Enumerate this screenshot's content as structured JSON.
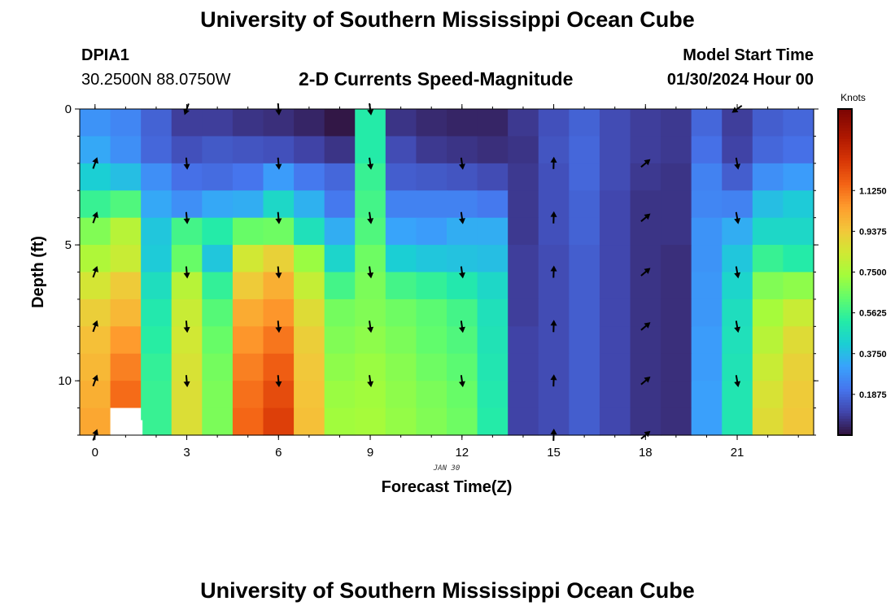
{
  "header": {
    "title": "University of Southern Mississippi Ocean Cube",
    "station": "DPIA1",
    "coords": "30.2500N  88.0750W",
    "subtitle": "2-D Currents Speed-Magnitude",
    "model_label": "Model Start Time",
    "model_time": "01/30/2024 Hour 00"
  },
  "footer": {
    "title": "University of Southern Mississippi Ocean Cube"
  },
  "chart_data": {
    "type": "heatmap",
    "title": "2-D Currents Speed-Magnitude",
    "xlabel": "Forecast Time(Z)",
    "ylabel": "Depth (ft)",
    "date_label": "JAN 30",
    "colorbar_label": "Knots",
    "colorbar_ticks": [
      "1.1250",
      "0.9375",
      "0.7500",
      "0.5625",
      "0.3750",
      "0.1875"
    ],
    "colorbar_tick_values": [
      1.125,
      0.9375,
      0.75,
      0.5625,
      0.375,
      0.1875
    ],
    "color_range": [
      0,
      1.5
    ],
    "x_ticks": [
      "0",
      "3",
      "6",
      "9",
      "12",
      "15",
      "18",
      "21"
    ],
    "x_tick_values": [
      0,
      3,
      6,
      9,
      12,
      15,
      18,
      21
    ],
    "y_ticks": [
      "0",
      "5",
      "10"
    ],
    "y_tick_values": [
      0,
      5,
      10
    ],
    "xlim": [
      0,
      23
    ],
    "ylim": [
      0,
      12
    ],
    "hours": [
      0,
      1,
      2,
      3,
      4,
      5,
      6,
      7,
      8,
      9,
      10,
      11,
      12,
      13,
      14,
      15,
      16,
      17,
      18,
      19,
      20,
      21,
      22,
      23
    ],
    "depths": [
      0,
      1,
      2,
      3,
      4,
      5,
      6,
      7,
      8,
      9,
      10,
      11
    ],
    "speed": [
      [
        0.28,
        0.25,
        0.17,
        0.09,
        0.09,
        0.07,
        0.06,
        0.04,
        0.01,
        0.52,
        0.07,
        0.05,
        0.04,
        0.04,
        0.08,
        0.13,
        0.17,
        0.12,
        0.09,
        0.08,
        0.18,
        0.09,
        0.16,
        0.18
      ],
      [
        0.33,
        0.27,
        0.18,
        0.13,
        0.15,
        0.14,
        0.13,
        0.1,
        0.07,
        0.52,
        0.12,
        0.08,
        0.07,
        0.06,
        0.07,
        0.14,
        0.18,
        0.12,
        0.09,
        0.08,
        0.2,
        0.1,
        0.18,
        0.2
      ],
      [
        0.42,
        0.38,
        0.27,
        0.2,
        0.19,
        0.21,
        0.3,
        0.22,
        0.18,
        0.56,
        0.16,
        0.15,
        0.14,
        0.12,
        0.08,
        0.13,
        0.18,
        0.12,
        0.08,
        0.07,
        0.24,
        0.16,
        0.27,
        0.3
      ],
      [
        0.56,
        0.6,
        0.33,
        0.27,
        0.33,
        0.34,
        0.45,
        0.35,
        0.22,
        0.58,
        0.24,
        0.24,
        0.24,
        0.22,
        0.08,
        0.13,
        0.17,
        0.11,
        0.07,
        0.07,
        0.25,
        0.24,
        0.38,
        0.41
      ],
      [
        0.68,
        0.78,
        0.4,
        0.58,
        0.52,
        0.64,
        0.65,
        0.48,
        0.34,
        0.6,
        0.32,
        0.3,
        0.34,
        0.34,
        0.08,
        0.13,
        0.17,
        0.11,
        0.07,
        0.07,
        0.28,
        0.34,
        0.45,
        0.45
      ],
      [
        0.76,
        0.82,
        0.41,
        0.64,
        0.4,
        0.84,
        0.91,
        0.72,
        0.44,
        0.65,
        0.42,
        0.4,
        0.39,
        0.38,
        0.09,
        0.12,
        0.16,
        0.11,
        0.07,
        0.06,
        0.28,
        0.4,
        0.56,
        0.52
      ],
      [
        0.85,
        0.93,
        0.47,
        0.78,
        0.55,
        0.93,
        1.0,
        0.81,
        0.58,
        0.67,
        0.58,
        0.55,
        0.51,
        0.45,
        0.09,
        0.12,
        0.16,
        0.11,
        0.07,
        0.06,
        0.29,
        0.44,
        0.68,
        0.7
      ],
      [
        0.92,
        0.98,
        0.51,
        0.82,
        0.61,
        1.01,
        1.06,
        0.88,
        0.66,
        0.68,
        0.65,
        0.62,
        0.58,
        0.48,
        0.09,
        0.12,
        0.16,
        0.11,
        0.07,
        0.06,
        0.29,
        0.47,
        0.74,
        0.82
      ],
      [
        0.96,
        1.05,
        0.53,
        0.84,
        0.64,
        1.06,
        1.12,
        0.92,
        0.68,
        0.7,
        0.67,
        0.63,
        0.6,
        0.49,
        0.1,
        0.12,
        0.16,
        0.11,
        0.07,
        0.06,
        0.3,
        0.48,
        0.78,
        0.88
      ],
      [
        0.98,
        1.1,
        0.55,
        0.86,
        0.66,
        1.1,
        1.17,
        0.94,
        0.7,
        0.72,
        0.69,
        0.65,
        0.62,
        0.5,
        0.1,
        0.12,
        0.16,
        0.11,
        0.07,
        0.06,
        0.3,
        0.49,
        0.82,
        0.91
      ],
      [
        1.0,
        1.14,
        0.56,
        0.87,
        0.67,
        1.13,
        1.21,
        0.95,
        0.72,
        0.73,
        0.7,
        0.67,
        0.64,
        0.51,
        0.1,
        0.12,
        0.16,
        0.11,
        0.07,
        0.06,
        0.31,
        0.5,
        0.86,
        0.93
      ],
      [
        1.02,
        1.18,
        0.56,
        0.87,
        0.67,
        1.15,
        1.24,
        0.96,
        0.73,
        0.74,
        0.71,
        0.68,
        0.65,
        0.52,
        0.1,
        0.12,
        0.16,
        0.11,
        0.07,
        0.06,
        0.31,
        0.5,
        0.88,
        0.94
      ]
    ],
    "missing_cells": [
      [
        1,
        11
      ]
    ],
    "arrows": [
      {
        "hour": 0,
        "depths": [
          2,
          4,
          6,
          8,
          10,
          12
        ],
        "direction_deg": 20
      },
      {
        "hour": 3,
        "depths": [
          0
        ],
        "direction_deg": 200
      },
      {
        "hour": 3,
        "depths": [
          2,
          4,
          6,
          8,
          10
        ],
        "direction_deg": 175
      },
      {
        "hour": 6,
        "depths": [
          0,
          2,
          4,
          6,
          8,
          10
        ],
        "direction_deg": 175
      },
      {
        "hour": 9,
        "depths": [
          0,
          2,
          4,
          6,
          8,
          10
        ],
        "direction_deg": 172
      },
      {
        "hour": 12,
        "depths": [
          2,
          4,
          6,
          8,
          10
        ],
        "direction_deg": 172
      },
      {
        "hour": 15,
        "depths": [
          2,
          4,
          6,
          8,
          10,
          12
        ],
        "direction_deg": 2
      },
      {
        "hour": 18,
        "depths": [
          2,
          4,
          6,
          8,
          10,
          12
        ],
        "direction_deg": 50
      },
      {
        "hour": 21,
        "depths": [
          0
        ],
        "direction_deg": 235
      },
      {
        "hour": 21,
        "depths": [
          2,
          4,
          6,
          8,
          10
        ],
        "direction_deg": 170
      }
    ]
  }
}
